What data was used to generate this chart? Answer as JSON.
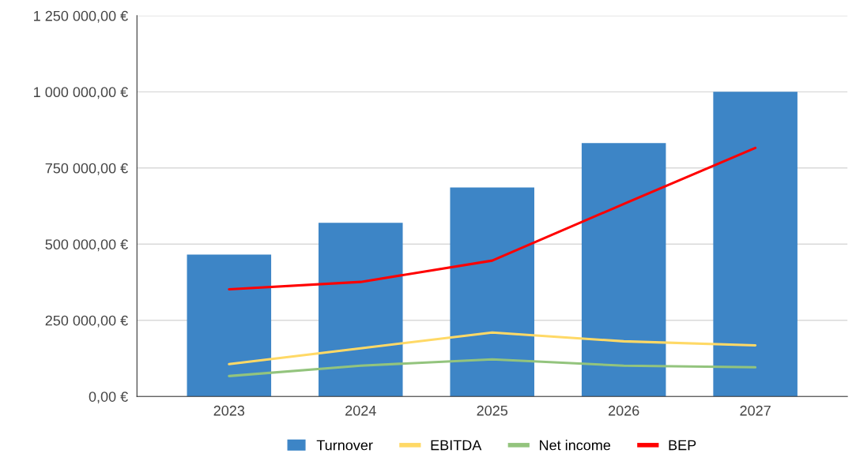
{
  "chart_data": {
    "type": "bar",
    "categories": [
      "2023",
      "2024",
      "2025",
      "2026",
      "2027"
    ],
    "series": [
      {
        "name": "Turnover",
        "color": "#3d85c6",
        "values": [
          466000,
          570000,
          686000,
          832000,
          1000000
        ]
      },
      {
        "name": "EBITDA",
        "type": "line",
        "color": "#ffd966",
        "values": [
          106000,
          158000,
          210000,
          181000,
          168000
        ]
      },
      {
        "name": "Net income",
        "type": "line",
        "color": "#93c47d",
        "values": [
          67000,
          101000,
          122000,
          101000,
          96000
        ]
      },
      {
        "name": "BEP",
        "type": "line",
        "color": "#ff0000",
        "values": [
          352000,
          376000,
          446000,
          632000,
          816000
        ]
      }
    ],
    "ylim": [
      0,
      1250000
    ],
    "yticks": [
      {
        "value": 0,
        "label": "0,00 €"
      },
      {
        "value": 250000,
        "label": "250 000,00 €"
      },
      {
        "value": 500000,
        "label": "500 000,00 €"
      },
      {
        "value": 750000,
        "label": "750 000,00 €"
      },
      {
        "value": 1000000,
        "label": "1 000 000,00 €"
      },
      {
        "value": 1250000,
        "label": "1 250 000,00 €"
      }
    ],
    "grid": "y",
    "legend": "bottom",
    "line_style": "solid",
    "marker": "none"
  }
}
